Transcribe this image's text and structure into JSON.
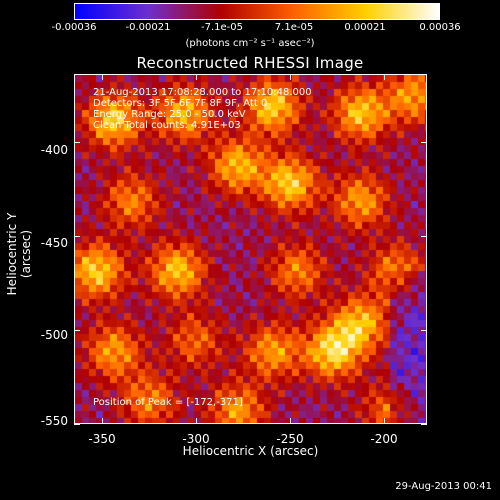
{
  "colorbar": {
    "ticks": [
      "-0.00036",
      "-0.00021",
      "-7.1e-05",
      "7.1e-05",
      "0.00021",
      "0.00036"
    ],
    "units": "(photons cm⁻² s⁻¹ asec⁻²)",
    "range": [
      -0.00036,
      0.00036
    ]
  },
  "annotations": {
    "time": "21-Aug-2013 17:08:28.000 to 17:10:48.000",
    "detectors": "Detectors: 3F 5F 6F 7F 8F 9F, Att 0",
    "energy": "Energy Range: 25.0 - 50.0 keV",
    "clean": "Clean    Total counts: 4.91E+03",
    "peak": "Position of Peak = [-172,-371]"
  },
  "footer": "29-Aug-2013 00:41",
  "chart_data": {
    "type": "heatmap",
    "title": "Reconstructed RHESSI Image",
    "xlabel": "Heliocentric X (arcsec)",
    "ylabel": "Heliocentric Y (arcsec)",
    "xlim": [
      -365,
      -177
    ],
    "ylim": [
      -550,
      -364
    ],
    "xticks": [
      -350,
      -300,
      -250,
      -200
    ],
    "yticks": [
      -400,
      -450,
      -500,
      -550
    ],
    "colormap": [
      "#0000ff",
      "#6d2fcf",
      "#b00000",
      "#ff6000",
      "#ffd000",
      "#ffffff"
    ],
    "grid": false
  }
}
